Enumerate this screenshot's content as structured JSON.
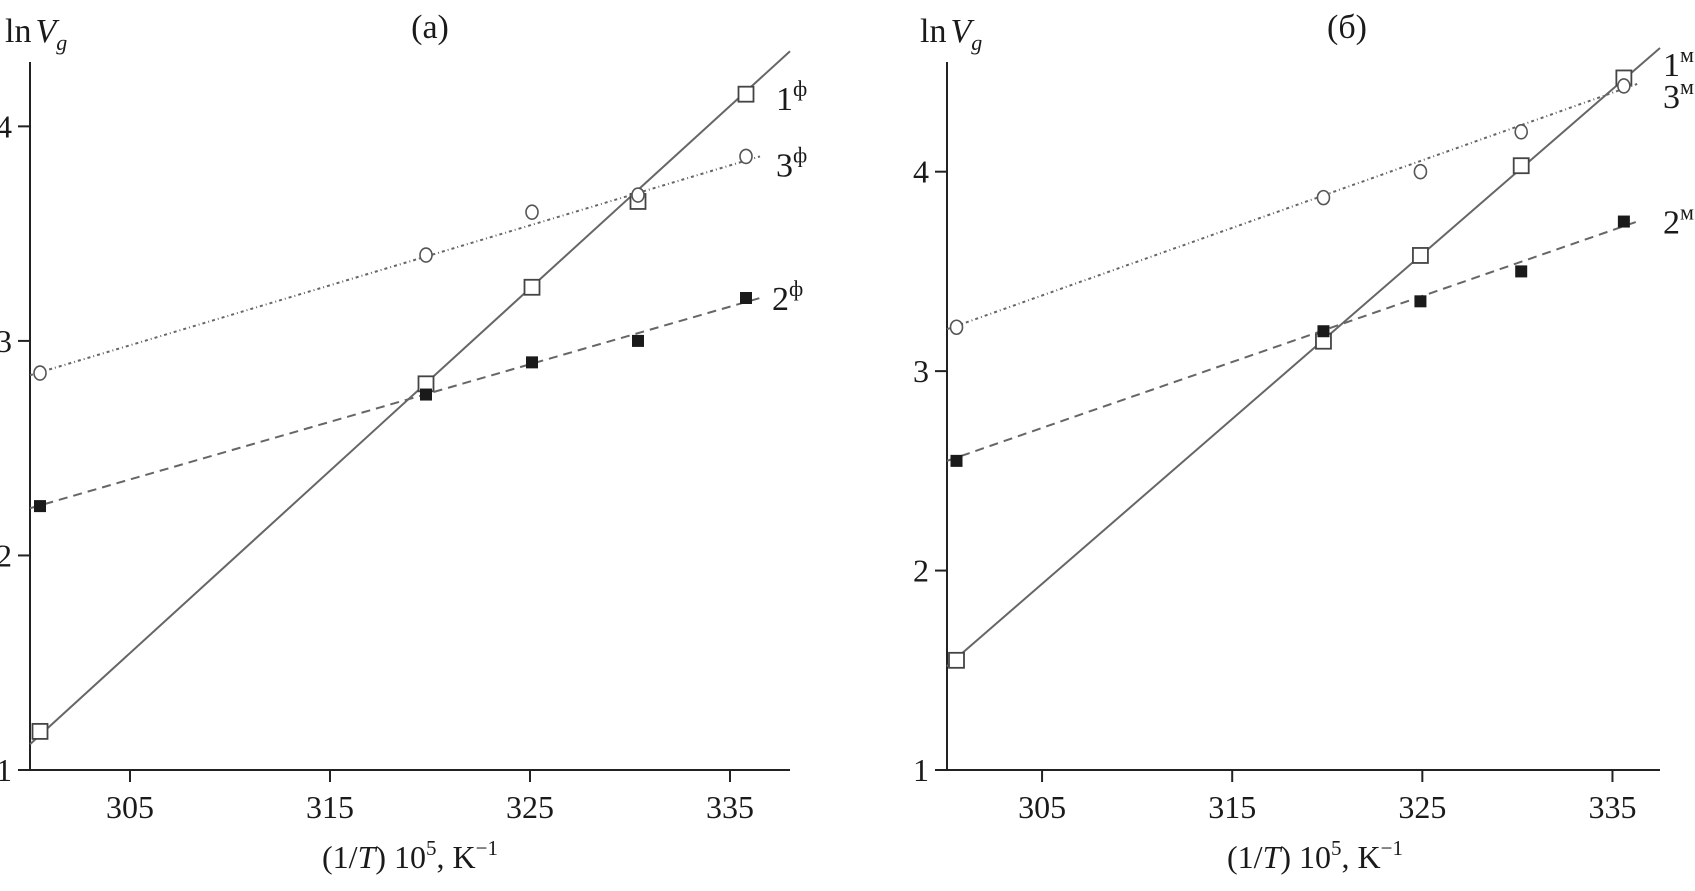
{
  "chart_data": [
    {
      "type": "scatter",
      "panel_label": "(а)",
      "ylabel_main": "ln",
      "ylabel_italic": "V",
      "ylabel_sub": "g",
      "xlabel_parts": [
        "(1/",
        "T",
        ") 10",
        "5",
        ", K",
        "−1"
      ],
      "xlim": [
        300,
        338
      ],
      "ylim": [
        1,
        4.3
      ],
      "x_ticks": [
        305,
        315,
        325,
        335
      ],
      "y_ticks": [
        1,
        2,
        3,
        4
      ],
      "series": [
        {
          "label": "1",
          "label_sup": "ф",
          "marker": "open-square",
          "line": "solid",
          "x": [
            300.5,
            319.8,
            325.1,
            330.4,
            335.8
          ],
          "y": [
            1.18,
            2.8,
            3.25,
            3.65,
            4.15
          ],
          "fit": [
            [
              300,
              1.12
            ],
            [
              338,
              4.35
            ]
          ]
        },
        {
          "label": "2",
          "label_sup": "ф",
          "marker": "filled-square",
          "line": "dashed",
          "x": [
            300.5,
            319.8,
            325.1,
            330.4,
            335.8
          ],
          "y": [
            2.23,
            2.75,
            2.9,
            3.0,
            3.2
          ],
          "fit": [
            [
              300,
              2.22
            ],
            [
              336.5,
              3.2
            ]
          ]
        },
        {
          "label": "3",
          "label_sup": "ф",
          "marker": "open-circle",
          "line": "dotted",
          "x": [
            300.5,
            319.8,
            325.1,
            330.4,
            335.8
          ],
          "y": [
            2.85,
            3.4,
            3.6,
            3.68,
            3.86
          ],
          "fit": [
            [
              300,
              2.84
            ],
            [
              336.5,
              3.86
            ]
          ]
        }
      ]
    },
    {
      "type": "scatter",
      "panel_label": "(б)",
      "ylabel_main": "ln",
      "ylabel_italic": "V",
      "ylabel_sub": "g",
      "xlabel_parts": [
        "(1/",
        "T",
        ") 10",
        "5",
        ", K",
        "−1"
      ],
      "xlim": [
        300,
        337.5
      ],
      "ylim": [
        1,
        4.55
      ],
      "x_ticks": [
        305,
        315,
        325,
        335
      ],
      "y_ticks": [
        1,
        2,
        3,
        4
      ],
      "series": [
        {
          "label": "1",
          "label_sup": "м",
          "marker": "open-square",
          "line": "solid",
          "x": [
            300.5,
            319.8,
            324.9,
            330.2,
            335.6
          ],
          "y": [
            1.55,
            3.15,
            3.58,
            4.03,
            4.47
          ],
          "fit": [
            [
              300,
              1.52
            ],
            [
              337.5,
              4.62
            ]
          ]
        },
        {
          "label": "2",
          "label_sup": "м",
          "marker": "filled-square",
          "line": "dashed",
          "x": [
            300.5,
            319.8,
            324.9,
            330.2,
            335.6
          ],
          "y": [
            2.55,
            3.2,
            3.35,
            3.5,
            3.75
          ],
          "fit": [
            [
              300,
              2.55
            ],
            [
              336.3,
              3.75
            ]
          ]
        },
        {
          "label": "3",
          "label_sup": "м",
          "marker": "open-circle",
          "line": "dotted",
          "x": [
            300.5,
            319.8,
            324.9,
            330.2,
            335.6
          ],
          "y": [
            3.22,
            3.87,
            4.0,
            4.2,
            4.43
          ],
          "fit": [
            [
              300,
              3.21
            ],
            [
              336.3,
              4.44
            ]
          ]
        }
      ]
    }
  ]
}
